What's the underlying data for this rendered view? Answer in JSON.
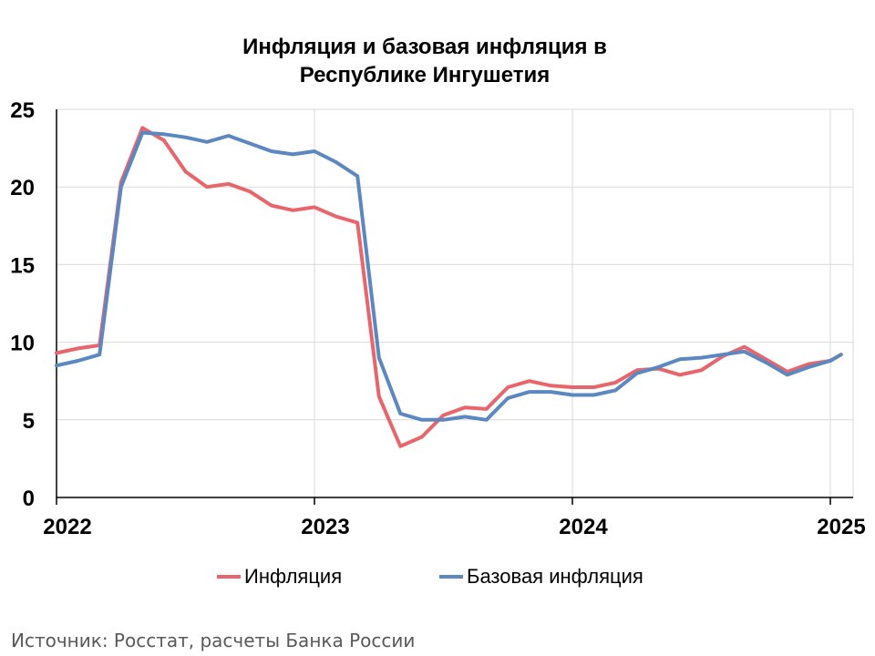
{
  "chart_data": {
    "type": "line",
    "title_lines": [
      "Инфляция и базовая инфляция в",
      "Республике Ингушетия"
    ],
    "xlabel": "",
    "ylabel": "",
    "ylim": [
      0,
      25
    ],
    "yticks": [
      "0",
      "5",
      "10",
      "15",
      "20",
      "25"
    ],
    "xticks": [
      "2022",
      "2023",
      "2024",
      "2025"
    ],
    "grid": true,
    "legend_position": "bottom",
    "x": [
      "2022-01",
      "2022-02",
      "2022-03",
      "2022-04",
      "2022-05",
      "2022-06",
      "2022-07",
      "2022-08",
      "2022-09",
      "2022-10",
      "2022-11",
      "2022-12",
      "2023-01",
      "2023-02",
      "2023-03",
      "2023-04",
      "2023-05",
      "2023-06",
      "2023-07",
      "2023-08",
      "2023-09",
      "2023-10",
      "2023-11",
      "2023-12",
      "2024-01",
      "2024-02",
      "2024-03",
      "2024-04",
      "2024-05",
      "2024-06",
      "2024-07",
      "2024-08",
      "2024-09",
      "2024-10",
      "2024-11",
      "2024-12",
      "2025-01"
    ],
    "series": [
      {
        "name": "Инфляция",
        "color": "#e8666b",
        "values": [
          9.3,
          9.6,
          9.8,
          20.3,
          23.8,
          23.0,
          21.0,
          20.0,
          20.2,
          19.7,
          18.8,
          18.5,
          18.7,
          18.1,
          17.7,
          6.5,
          3.3,
          3.9,
          5.3,
          5.8,
          5.7,
          7.1,
          7.5,
          7.2,
          7.1,
          7.1,
          7.4,
          8.2,
          8.3,
          7.9,
          8.2,
          9.1,
          9.7,
          8.9,
          8.1,
          8.6,
          8.8
        ]
      },
      {
        "name": "Базовая инфляция",
        "color": "#5b88c0",
        "values": [
          8.5,
          8.8,
          9.2,
          20.0,
          23.5,
          23.4,
          23.2,
          22.9,
          23.3,
          22.8,
          22.3,
          22.1,
          22.3,
          21.6,
          20.7,
          9.0,
          5.4,
          5.0,
          5.0,
          5.2,
          5.0,
          6.4,
          6.8,
          6.8,
          6.6,
          6.6,
          6.9,
          8.0,
          8.4,
          8.9,
          9.0,
          9.2,
          9.4,
          8.7,
          7.9,
          8.4,
          8.8
        ]
      }
    ],
    "extra_point_final": 9.2
  },
  "source_text": "Источник: Росстат, расчеты Банка России"
}
